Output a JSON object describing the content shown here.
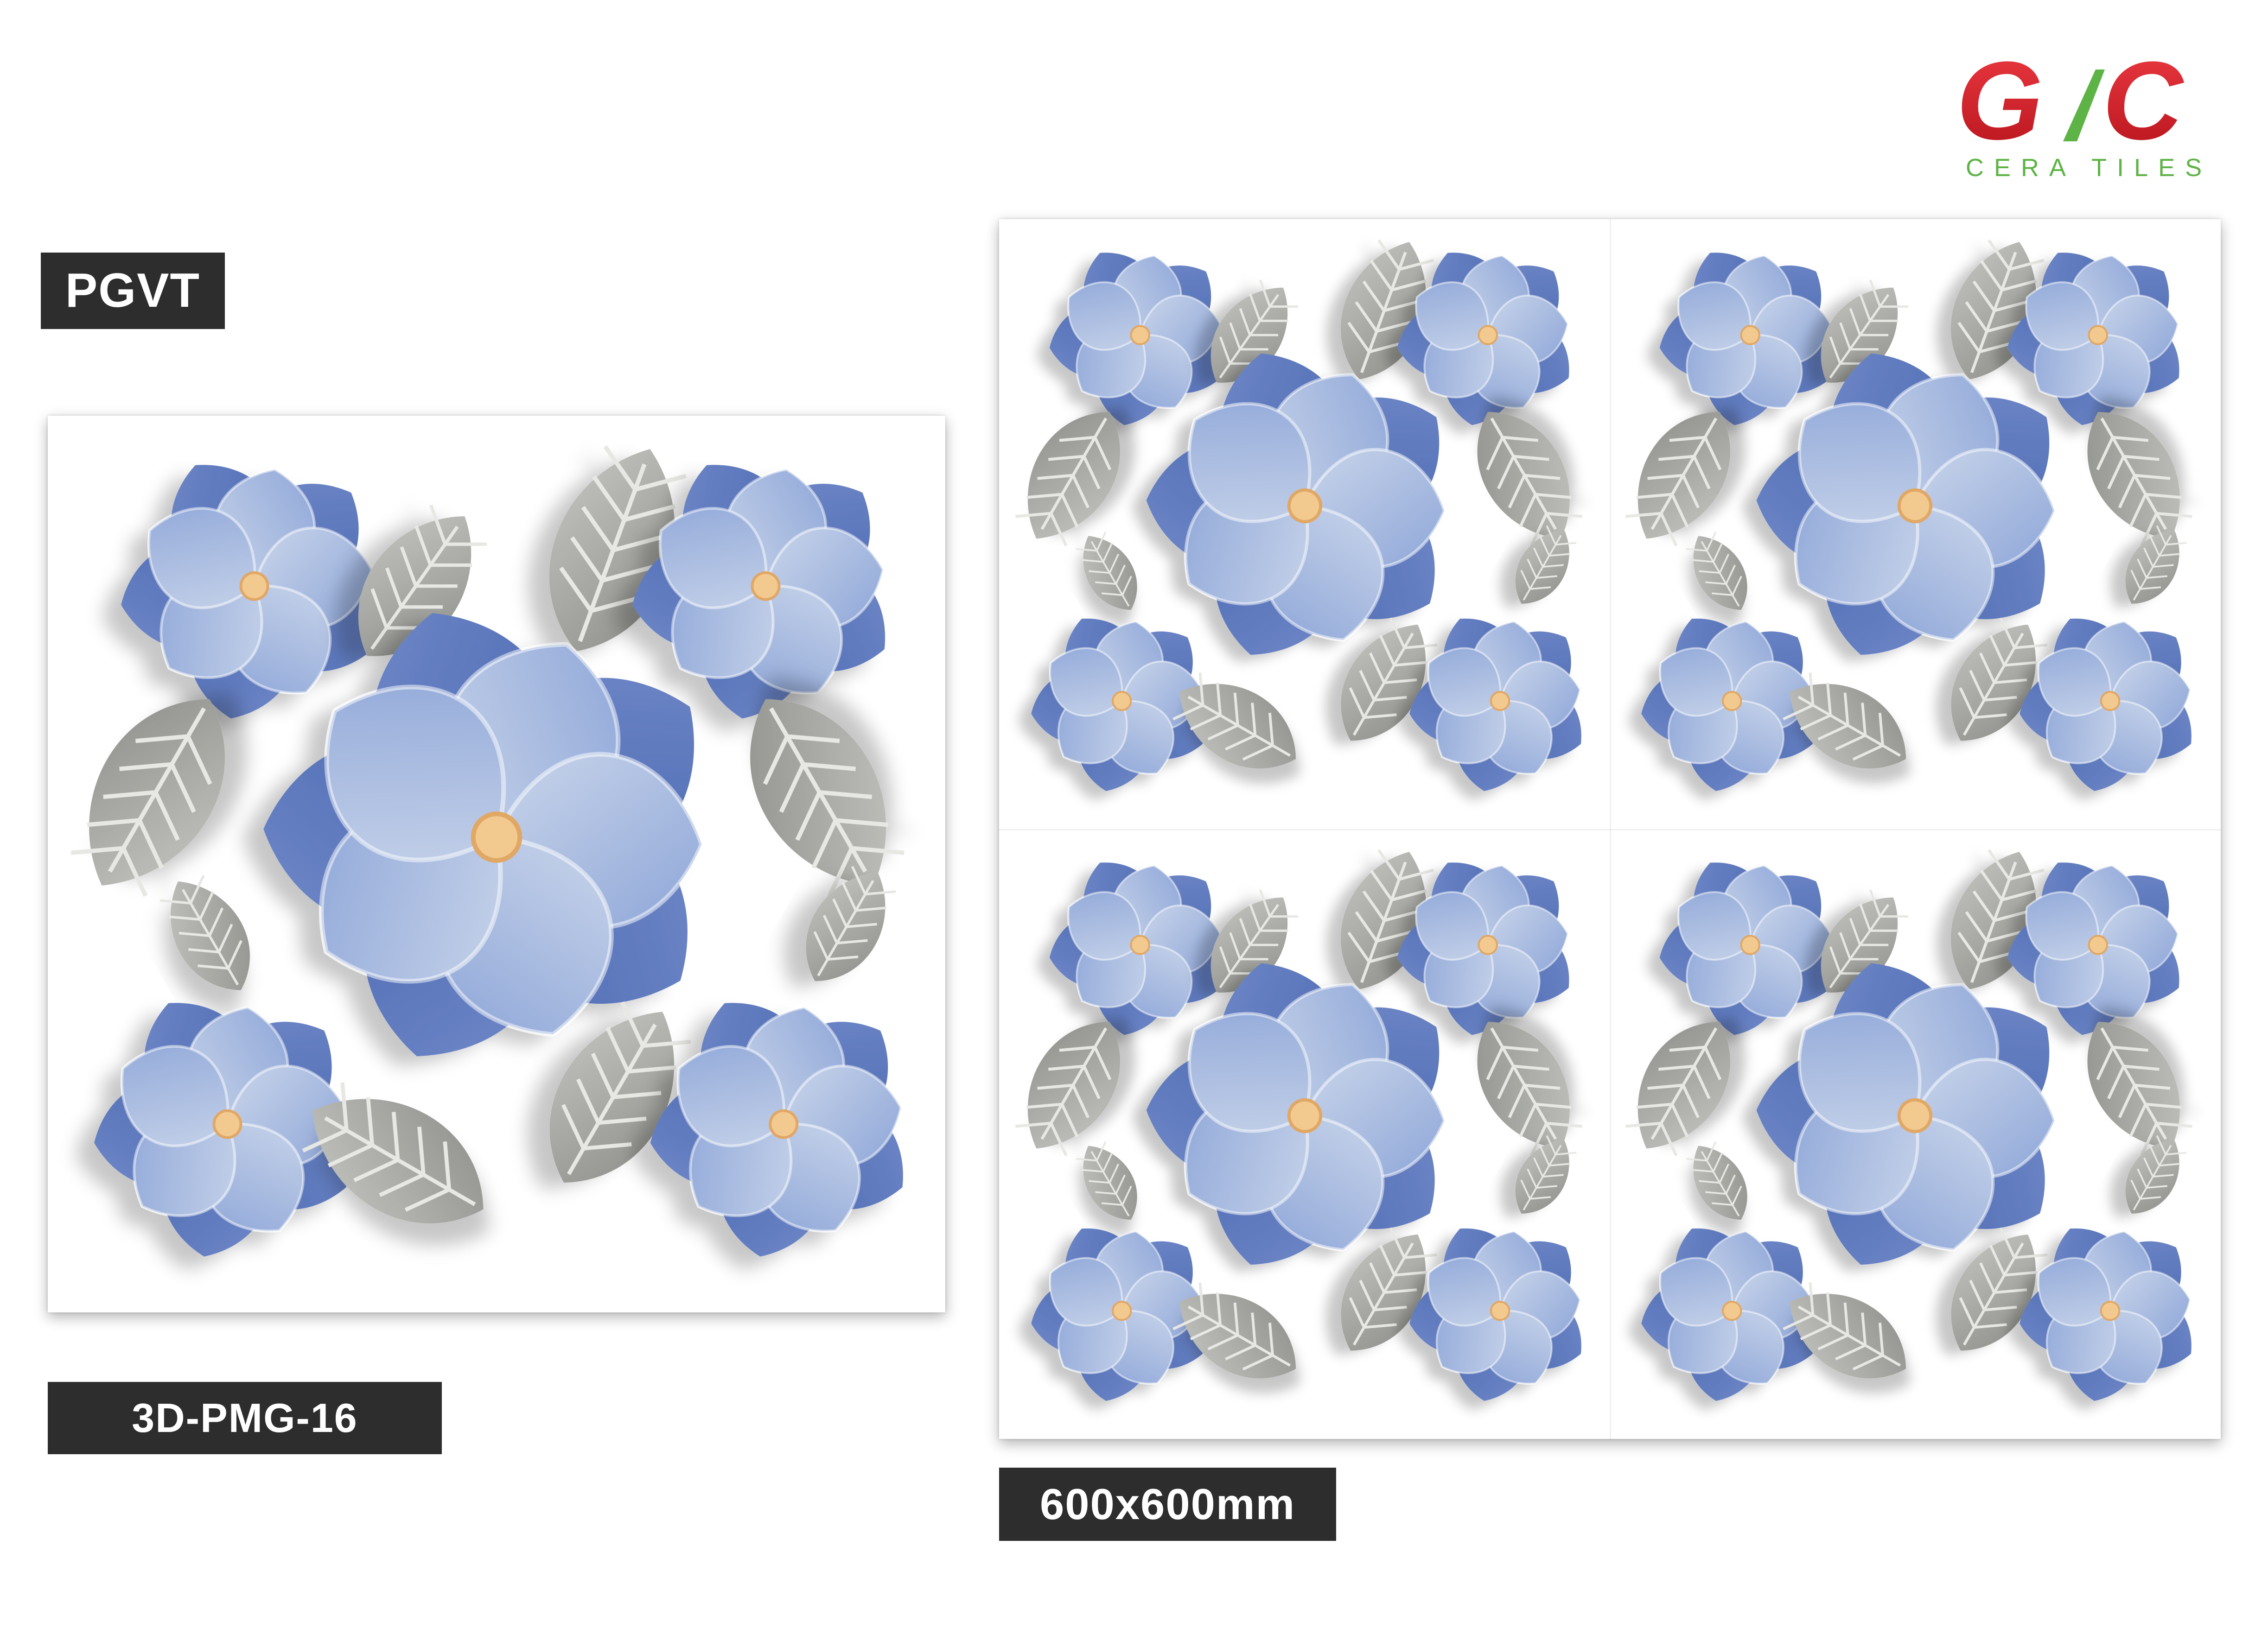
{
  "brand": {
    "mark_left": "G",
    "mark_right": "C",
    "tagline": "CERA TILES",
    "colors": {
      "red": "#d9232e",
      "green": "#5db345"
    }
  },
  "product": {
    "type": "PGVT",
    "code": "3D-PMG-16",
    "size": "600x600mm"
  },
  "pattern": {
    "description_colors": {
      "petal_dark": "#4a68b0",
      "petal_light": "#c9d5ea",
      "center": "#f2c98e",
      "leaf": "#a9aaa5",
      "background": "#ffffff"
    },
    "icons": [
      "flower-icon",
      "leaf-icon"
    ]
  }
}
